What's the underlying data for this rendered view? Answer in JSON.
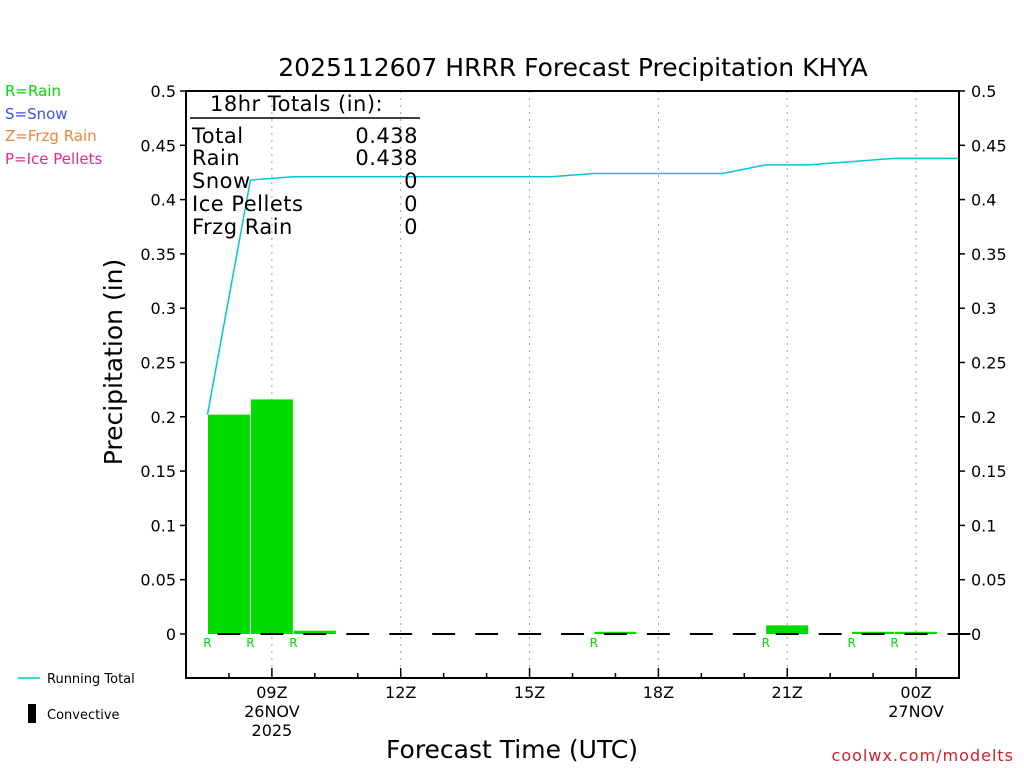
{
  "chart_data": {
    "type": "bar",
    "title": "2025112607 HRRR Forecast Precipitation KHYA",
    "xlabel": "Forecast Time (UTC)",
    "ylabel": "Precipitation (in)",
    "ylim": [
      -0.04,
      0.5
    ],
    "y_ticks": [
      0,
      0.05,
      0.1,
      0.15,
      0.2,
      0.25,
      0.3,
      0.35,
      0.4,
      0.45,
      0.5
    ],
    "y_tick_labels": [
      "0",
      "0.05",
      "0.1",
      "0.15",
      "0.2",
      "0.25",
      "0.3",
      "0.35",
      "0.4",
      "0.45",
      "0.5"
    ],
    "xlim": [
      7,
      25
    ],
    "x_major_ticks": [
      {
        "hour": 9,
        "lines": [
          "09Z",
          "26NOV",
          "2025"
        ]
      },
      {
        "hour": 12,
        "lines": [
          "12Z"
        ]
      },
      {
        "hour": 15,
        "lines": [
          "15Z"
        ]
      },
      {
        "hour": 18,
        "lines": [
          "18Z"
        ]
      },
      {
        "hour": 21,
        "lines": [
          "21Z"
        ]
      },
      {
        "hour": 24,
        "lines": [
          "00Z",
          "27NOV"
        ]
      }
    ],
    "hours": [
      8,
      9,
      10,
      11,
      12,
      13,
      14,
      15,
      16,
      17,
      18,
      19,
      20,
      21,
      22,
      23,
      24,
      25
    ],
    "precip": [
      0.202,
      0.216,
      0.003,
      0,
      0,
      0,
      0,
      0,
      0,
      0.002,
      0,
      0,
      0,
      0.008,
      0,
      0.002,
      0.002,
      0
    ],
    "precip_type": [
      "R",
      "R",
      "R",
      "",
      "",
      "",
      "",
      "",
      "",
      "R",
      "",
      "",
      "",
      "R",
      "",
      "R",
      "R",
      ""
    ],
    "convective": [
      0,
      0,
      0,
      0,
      0,
      0,
      0,
      0,
      0,
      0,
      0,
      0,
      0,
      0,
      0,
      0,
      0,
      0
    ],
    "running_total": {
      "x": [
        8,
        9,
        10,
        11,
        12,
        13,
        14,
        15,
        16,
        17,
        18,
        19,
        20,
        21,
        22,
        23,
        24,
        25
      ],
      "y": [
        0.202,
        0.418,
        0.421,
        0.421,
        0.421,
        0.421,
        0.421,
        0.421,
        0.421,
        0.424,
        0.424,
        0.424,
        0.424,
        0.432,
        0.432,
        0.435,
        0.438,
        0.438
      ]
    },
    "colors": {
      "rain": "#00dc00",
      "snow": "#3c50e6",
      "frzg_rain": "#f0823c",
      "ice_pellets": "#e6288c",
      "running_total": "#00c8d2",
      "convective": "#000000",
      "grid": "#a0a0a0"
    },
    "grid": true,
    "legend_placement": "left"
  },
  "type_legend": {
    "rain": "R=Rain",
    "snow": "S=Snow",
    "frzg_rain": "Z=Frzg Rain",
    "ice_pellets": "P=Ice Pellets"
  },
  "series_legend": {
    "running_total": "Running Total",
    "convective": "Convective"
  },
  "totals": {
    "header": "18hr Totals (in):",
    "rows": [
      {
        "label": "Total",
        "value": "0.438"
      },
      {
        "label": "Rain",
        "value": "0.438"
      },
      {
        "label": "Snow",
        "value": "0"
      },
      {
        "label": "Ice Pellets",
        "value": "0"
      },
      {
        "label": "Frzg Rain",
        "value": "0"
      }
    ]
  },
  "credit": "coolwx.com/modelts"
}
